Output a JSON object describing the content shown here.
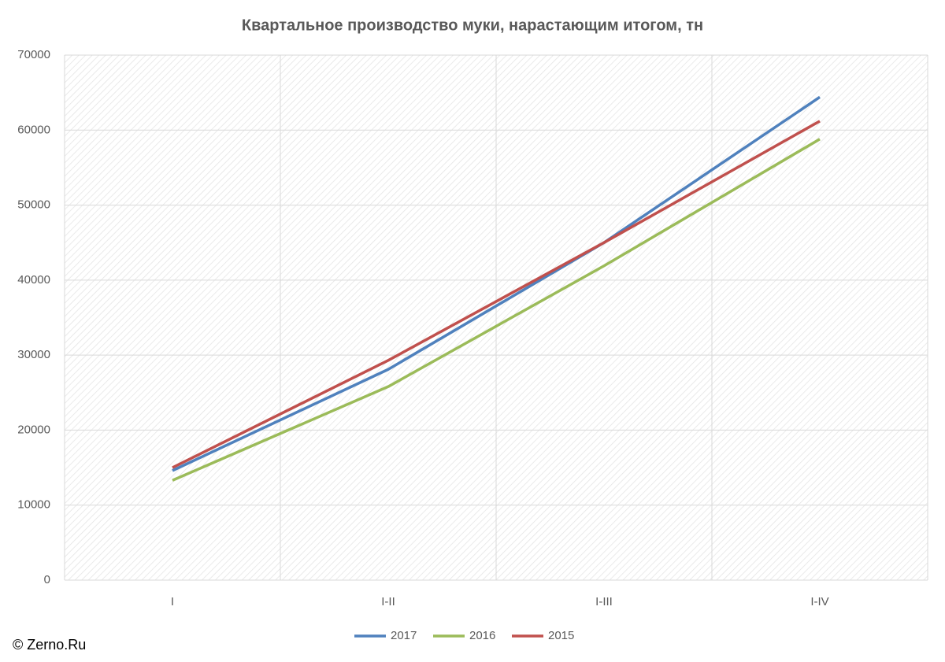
{
  "chart_data": {
    "type": "line",
    "title": "Квартальное производство муки, нарастающим итогом, тн",
    "categories": [
      "I",
      "I-II",
      "I-III",
      "I-IV"
    ],
    "series": [
      {
        "name": "2017",
        "color": "#4f81bd",
        "values": [
          14600,
          28100,
          45000,
          64400
        ]
      },
      {
        "name": "2016",
        "color": "#9bbb59",
        "values": [
          13300,
          25800,
          41900,
          58800
        ]
      },
      {
        "name": "2015",
        "color": "#c0504d",
        "values": [
          15000,
          29300,
          45000,
          61200
        ]
      }
    ],
    "ylim": [
      0,
      70000
    ],
    "yticks": [
      0,
      10000,
      20000,
      30000,
      40000,
      50000,
      60000,
      70000
    ],
    "grid": true,
    "legend": "bottom",
    "credit": "© Zerno.Ru"
  }
}
